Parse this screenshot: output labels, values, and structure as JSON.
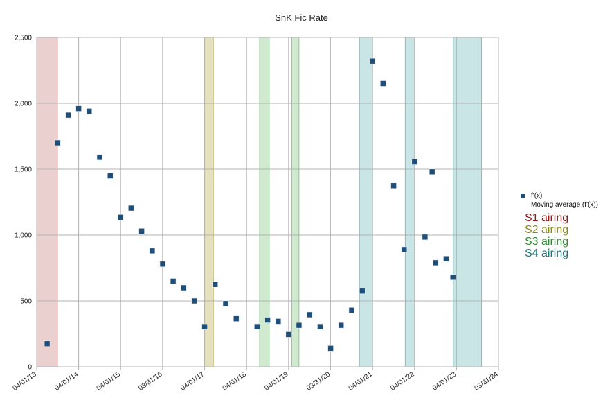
{
  "chart_data": {
    "type": "scatter",
    "title": "SnK Fic Rate",
    "xlabel": "",
    "ylabel": "",
    "x_axis": {
      "type": "date",
      "range": [
        "2013-04-01",
        "2024-03-31"
      ],
      "ticks": [
        {
          "label": "04/01/13",
          "date": "2013-04-01"
        },
        {
          "label": "04/01/14",
          "date": "2014-04-01"
        },
        {
          "label": "04/01/15",
          "date": "2015-04-01"
        },
        {
          "label": "03/31/16",
          "date": "2016-03-31"
        },
        {
          "label": "04/01/17",
          "date": "2017-04-01"
        },
        {
          "label": "04/01/18",
          "date": "2018-04-01"
        },
        {
          "label": "04/01/19",
          "date": "2019-04-01"
        },
        {
          "label": "03/31/20",
          "date": "2020-03-31"
        },
        {
          "label": "04/01/21",
          "date": "2021-04-01"
        },
        {
          "label": "04/01/22",
          "date": "2022-04-01"
        },
        {
          "label": "04/01/23",
          "date": "2023-04-01"
        },
        {
          "label": "03/31/24",
          "date": "2024-03-31"
        }
      ]
    },
    "y_axis": {
      "range": [
        0,
        2500
      ],
      "ticks": [
        {
          "value": 0,
          "label": "0"
        },
        {
          "value": 500,
          "label": "500"
        },
        {
          "value": 1000,
          "label": "1,000"
        },
        {
          "value": 1500,
          "label": "1,500"
        },
        {
          "value": 2000,
          "label": "2,000"
        },
        {
          "value": 2500,
          "label": "2,500"
        }
      ]
    },
    "grid": true,
    "legend_position": "right",
    "series": [
      {
        "name": "f'(x)",
        "color": "#1f4e79",
        "points": [
          {
            "x": "2013-07-01",
            "y": 175
          },
          {
            "x": "2013-10-01",
            "y": 1700
          },
          {
            "x": "2014-01-01",
            "y": 1910
          },
          {
            "x": "2014-04-01",
            "y": 1960
          },
          {
            "x": "2014-07-01",
            "y": 1940
          },
          {
            "x": "2014-10-01",
            "y": 1590
          },
          {
            "x": "2015-01-01",
            "y": 1450
          },
          {
            "x": "2015-04-01",
            "y": 1135
          },
          {
            "x": "2015-07-01",
            "y": 1205
          },
          {
            "x": "2015-10-01",
            "y": 1030
          },
          {
            "x": "2016-01-01",
            "y": 880
          },
          {
            "x": "2016-04-01",
            "y": 780
          },
          {
            "x": "2016-07-01",
            "y": 650
          },
          {
            "x": "2016-10-01",
            "y": 600
          },
          {
            "x": "2017-01-01",
            "y": 500
          },
          {
            "x": "2017-04-01",
            "y": 305
          },
          {
            "x": "2017-07-01",
            "y": 625
          },
          {
            "x": "2017-10-01",
            "y": 480
          },
          {
            "x": "2018-01-01",
            "y": 365
          },
          {
            "x": "2018-07-01",
            "y": 305
          },
          {
            "x": "2018-10-01",
            "y": 355
          },
          {
            "x": "2019-01-01",
            "y": 345
          },
          {
            "x": "2019-04-01",
            "y": 245
          },
          {
            "x": "2019-07-01",
            "y": 315
          },
          {
            "x": "2019-10-01",
            "y": 395
          },
          {
            "x": "2020-01-01",
            "y": 305
          },
          {
            "x": "2020-04-01",
            "y": 140
          },
          {
            "x": "2020-07-01",
            "y": 315
          },
          {
            "x": "2020-10-01",
            "y": 430
          },
          {
            "x": "2021-01-01",
            "y": 575
          },
          {
            "x": "2021-04-01",
            "y": 2320
          },
          {
            "x": "2021-07-01",
            "y": 2150
          },
          {
            "x": "2021-10-01",
            "y": 1375
          },
          {
            "x": "2022-01-01",
            "y": 890
          },
          {
            "x": "2022-04-01",
            "y": 1555
          },
          {
            "x": "2022-07-01",
            "y": 985
          },
          {
            "x": "2022-09-01",
            "y": 1480
          },
          {
            "x": "2022-10-01",
            "y": 790
          },
          {
            "x": "2023-01-01",
            "y": 820
          },
          {
            "x": "2023-03-01",
            "y": 680
          }
        ]
      },
      {
        "name": "Moving average (f'(x))",
        "color": "#1f4e79",
        "points": []
      }
    ],
    "airing_periods": [
      {
        "label": "S1 airing",
        "start": "2013-04-01",
        "end": "2013-09-28",
        "color": "#8b1a1a",
        "fill": "#e8c8c8"
      },
      {
        "label": "S2 airing",
        "start": "2017-04-01",
        "end": "2017-06-17",
        "color": "#8b8a1a",
        "fill": "#e0dcb4"
      },
      {
        "label": "S3 airing",
        "start": "2018-07-23",
        "end": "2018-10-15",
        "color": "#2e8b2e",
        "fill": "#c8e6c8"
      },
      {
        "label": "S3 airing",
        "start": "2019-04-29",
        "end": "2019-07-01",
        "color": "#2e8b2e",
        "fill": "#c8e6c8"
      },
      {
        "label": "S4 airing",
        "start": "2020-12-07",
        "end": "2021-03-29",
        "color": "#1d7a7a",
        "fill": "#bfe0e0"
      },
      {
        "label": "S4 airing",
        "start": "2022-01-10",
        "end": "2022-04-04",
        "color": "#1d7a7a",
        "fill": "#bfe0e0"
      },
      {
        "label": "S4 airing",
        "start": "2023-03-04",
        "end": "2023-11-05",
        "color": "#1d7a7a",
        "fill": "#bfe0e0"
      }
    ]
  },
  "legend": {
    "entries": [
      "f'(x)",
      "Moving average (f'(x))"
    ],
    "seasons": [
      {
        "label": "S1 airing",
        "color": "#8b1a1a"
      },
      {
        "label": "S2 airing",
        "color": "#8b8a1a"
      },
      {
        "label": "S3 airing",
        "color": "#2e8b2e"
      },
      {
        "label": "S4 airing",
        "color": "#1d7a7a"
      }
    ]
  }
}
